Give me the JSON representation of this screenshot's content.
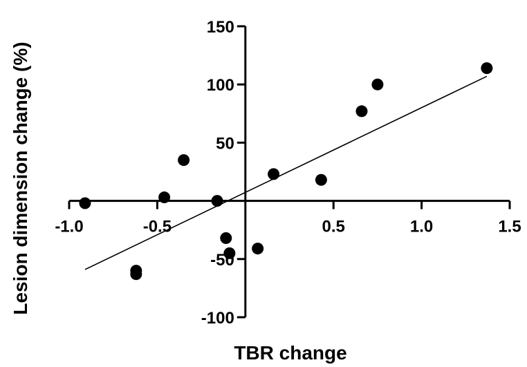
{
  "chart_data": {
    "type": "scatter",
    "xlabel": "TBR change",
    "ylabel": "Lesion dimension change (%)",
    "xlim": [
      -1.0,
      1.5
    ],
    "ylim": [
      -100,
      150
    ],
    "xticks": [
      -1.0,
      -0.5,
      0.5,
      1.0,
      1.5
    ],
    "xtick_labels": [
      "-1.0",
      "-0.5",
      "0.5",
      "1.0",
      "1.5"
    ],
    "yticks": [
      -100,
      -50,
      50,
      100,
      150
    ],
    "ytick_labels": [
      "-100",
      "-50",
      "50",
      "100",
      "150"
    ],
    "axes_cross_at": {
      "x": 0,
      "y": 0
    },
    "grid": false,
    "legend": "none",
    "series": [
      {
        "x": [
          -0.91,
          -0.62,
          -0.62,
          -0.46,
          -0.35,
          -0.16,
          -0.09,
          -0.11,
          0.07,
          0.16,
          0.43,
          0.66,
          0.75,
          1.37
        ],
        "y": [
          -2,
          -60,
          -63,
          3,
          35,
          0,
          -45,
          -32,
          -41,
          23,
          18,
          77,
          100,
          114
        ]
      }
    ],
    "regression_line": {
      "x": [
        -0.91,
        1.37
      ],
      "y": [
        -59,
        107
      ]
    },
    "colors": {
      "points": "#000000",
      "line": "#000000",
      "axes": "#000000"
    }
  }
}
